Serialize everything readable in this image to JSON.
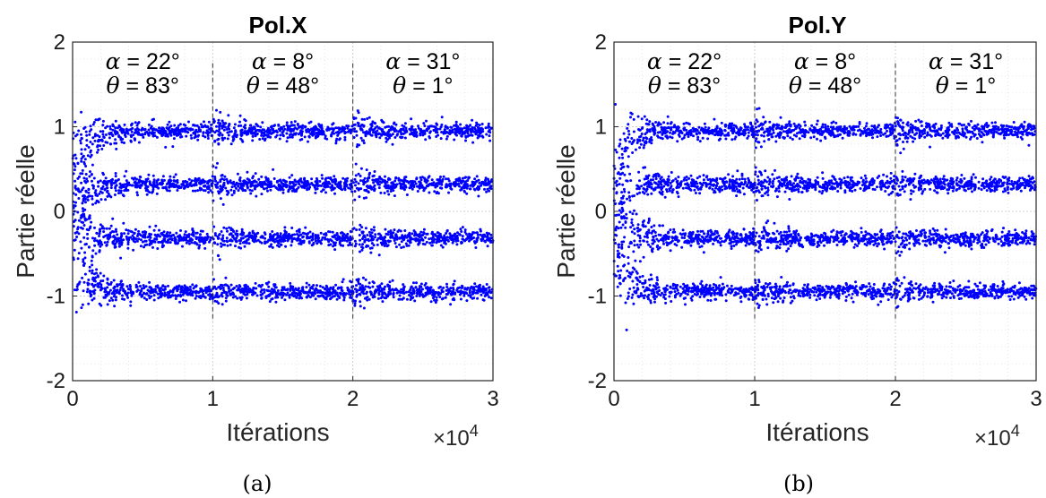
{
  "chart_data": [
    {
      "type": "scatter",
      "title": "Pol.X",
      "xlabel": "Itérations",
      "ylabel": "Partie réelle",
      "x_exponent_label": "×10",
      "x_exponent_power": "4",
      "xlim": [
        0,
        3
      ],
      "ylim": [
        -2,
        2
      ],
      "x_ticks": [
        "0",
        "1",
        "2",
        "3"
      ],
      "y_ticks": [
        "2",
        "1",
        "0",
        "-1",
        "-2"
      ],
      "grid": true,
      "color": "#0000ff",
      "levels": [
        0.95,
        0.32,
        -0.32,
        -0.95
      ],
      "segment_boundaries": [
        1,
        2
      ],
      "convergence_start_spread": 1.4,
      "segments": [
        {
          "alpha": "α = 22°",
          "theta": "θ = 83°"
        },
        {
          "alpha": "α = 8°",
          "theta": "θ = 48°"
        },
        {
          "alpha": "α = 31°",
          "theta": "θ = 1°"
        }
      ],
      "caption": "(a)"
    },
    {
      "type": "scatter",
      "title": "Pol.Y",
      "xlabel": "Itérations",
      "ylabel": "Partie réelle",
      "x_exponent_label": "×10",
      "x_exponent_power": "4",
      "xlim": [
        0,
        3
      ],
      "ylim": [
        -2,
        2
      ],
      "x_ticks": [
        "0",
        "1",
        "2",
        "3"
      ],
      "y_ticks": [
        "2",
        "1",
        "0",
        "-1",
        "-2"
      ],
      "grid": true,
      "color": "#0000ff",
      "levels": [
        0.95,
        0.32,
        -0.32,
        -0.95
      ],
      "segment_boundaries": [
        1,
        2
      ],
      "convergence_start_spread": 1.3,
      "segments": [
        {
          "alpha": "α = 22°",
          "theta": "θ = 83°"
        },
        {
          "alpha": "α = 8°",
          "theta": "θ = 48°"
        },
        {
          "alpha": "α = 31°",
          "theta": "θ = 1°"
        }
      ],
      "caption": "(b)"
    }
  ]
}
